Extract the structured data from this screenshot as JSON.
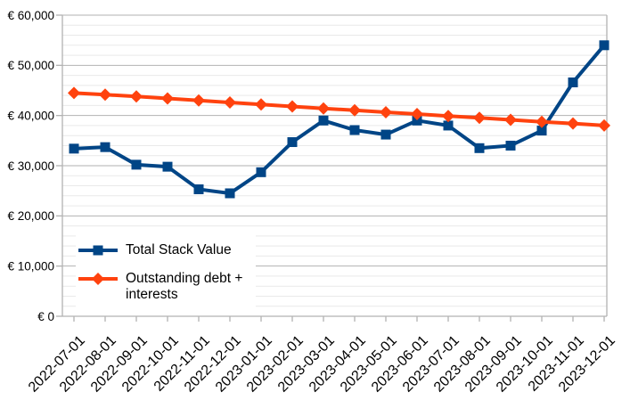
{
  "chart_data": {
    "type": "line",
    "title": "",
    "categories": [
      "2022-07-01",
      "2022-08-01",
      "2022-09-01",
      "2022-10-01",
      "2022-11-01",
      "2022-12-01",
      "2023-01-01",
      "2023-02-01",
      "2023-03-01",
      "2023-04-01",
      "2023-05-01",
      "2023-06-01",
      "2023-07-01",
      "2023-08-01",
      "2023-09-01",
      "2023-10-01",
      "2023-11-01",
      "2023-12-01"
    ],
    "series": [
      {
        "name": "Total Stack Value",
        "color": "#004586",
        "marker": "square",
        "values": [
          33400,
          33700,
          30200,
          29800,
          25300,
          24500,
          28700,
          34700,
          39000,
          37100,
          36200,
          39000,
          38000,
          33500,
          34000,
          37000,
          46600,
          54000
        ]
      },
      {
        "name": "Outstanding debt + interests",
        "color": "#FF420E",
        "marker": "diamond",
        "values": [
          44500,
          44150,
          43800,
          43400,
          43000,
          42600,
          42200,
          41800,
          41400,
          41050,
          40650,
          40300,
          39900,
          39550,
          39150,
          38750,
          38400,
          38000
        ]
      }
    ],
    "xlabel": "",
    "ylabel": "",
    "ylim": [
      0,
      60000
    ],
    "y_major_step": 10000,
    "y_minor_step": 2000,
    "y_tick_labels": [
      "€ 0",
      "€ 10,000",
      "€ 20,000",
      "€ 30,000",
      "€ 40,000",
      "€ 50,000",
      "€ 60,000"
    ],
    "x_label_rotation": -45,
    "grid": "horizontal major+minor",
    "legend_position": "inside lower-left",
    "plot_background": "#ffffff"
  }
}
